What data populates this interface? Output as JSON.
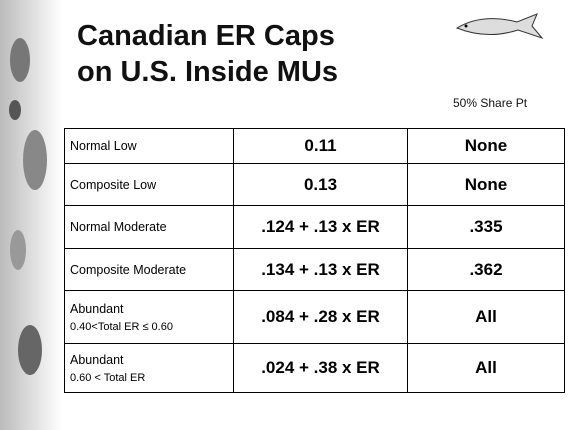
{
  "header": {
    "title_lines": [
      "Canadian ER Caps",
      "on U.S. Inside MUs"
    ],
    "column_note": "50% Share Pt"
  },
  "table": {
    "rows": [
      {
        "label": "Normal Low",
        "cap": "0.11",
        "share": "None"
      },
      {
        "label": "Composite Low",
        "cap": "0.13",
        "share": "None"
      },
      {
        "label": "Normal Moderate",
        "cap": ".124 + .13 x ER",
        "share": ".335"
      },
      {
        "label": "Composite Moderate",
        "cap": ".134 + .13 x ER",
        "share": ".362"
      },
      {
        "label": "Abundant",
        "sublabel": "0.40<Total ER ≤ 0.60",
        "cap": ".084 + .28 x ER",
        "share": "All"
      },
      {
        "label": "Abundant",
        "sublabel": "0.60 < Total ER",
        "cap": ".024 + .38 x ER",
        "share": "All"
      }
    ]
  }
}
